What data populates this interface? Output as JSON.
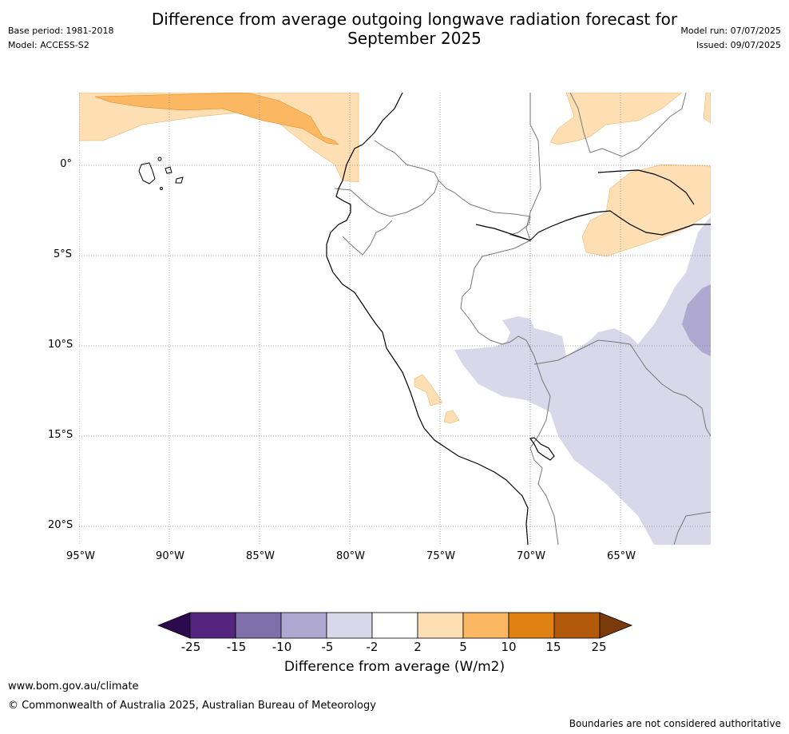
{
  "title": "Difference from average outgoing longwave radiation forecast for September 2025",
  "meta": {
    "base_period": "Base period: 1981-2018",
    "model": "Model: ACCESS-S2",
    "model_run": "Model run: 07/07/2025",
    "issued": "Issued: 09/07/2025"
  },
  "map": {
    "lat_labels": [
      "0°",
      "5°S",
      "10°S",
      "15°S",
      "20°S"
    ],
    "lon_labels": [
      "95°W",
      "90°W",
      "85°W",
      "80°W",
      "75°W",
      "70°W",
      "65°W"
    ]
  },
  "colorbar": {
    "ticks": [
      "-25",
      "-15",
      "-10",
      "-5",
      "-2",
      "2",
      "5",
      "10",
      "15",
      "25"
    ],
    "colors": [
      "#2d0a4e",
      "#54247f",
      "#7f6fab",
      "#afa8d1",
      "#d8d8ea",
      "#ffffff",
      "#fddfb3",
      "#fbb762",
      "#e08113",
      "#b2590c",
      "#7b3a0a"
    ],
    "label": "Difference from average (W/m2)"
  },
  "footer": {
    "url": "www.bom.gov.au/climate",
    "copyright": "© Commonwealth of Australia 2025, Australian Bureau of Meteorology",
    "note": "Boundaries are not considered authoritative"
  }
}
